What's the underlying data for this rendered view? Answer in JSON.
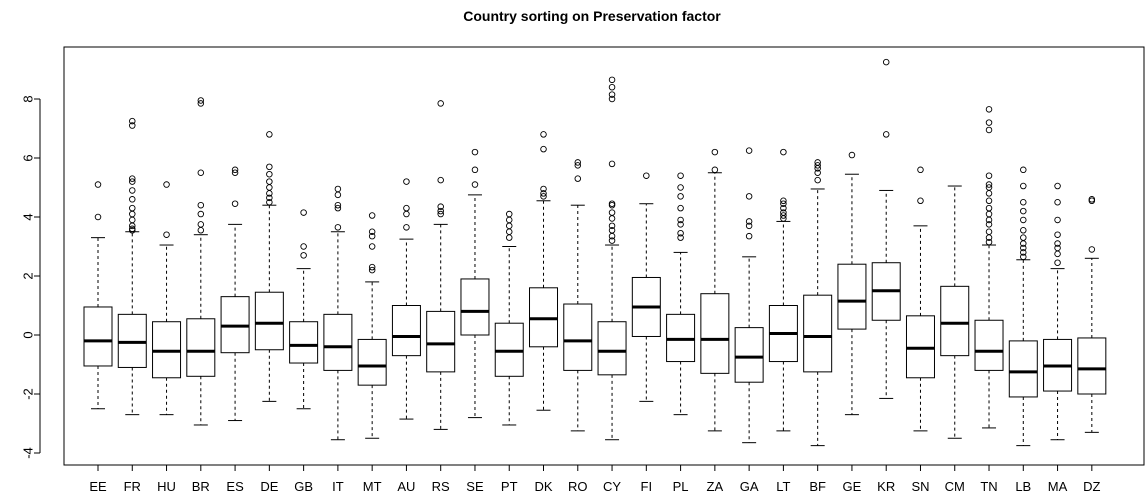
{
  "chart_data": {
    "type": "box",
    "title": "Country sorting on Preservation factor",
    "xlabel": "",
    "ylabel": "",
    "ylim": [
      -4.3,
      9.6
    ],
    "yticks": [
      -4,
      -2,
      0,
      2,
      4,
      6,
      8
    ],
    "ytick_labels": [
      "-4",
      "-2",
      "0",
      "2",
      "4",
      "6",
      "8"
    ],
    "grid": false,
    "categories": [
      "EE",
      "FR",
      "HU",
      "BR",
      "ES",
      "DE",
      "GB",
      "IT",
      "MT",
      "AU",
      "RS",
      "SE",
      "PT",
      "DK",
      "RO",
      "CY",
      "FI",
      "PL",
      "ZA",
      "GA",
      "LT",
      "BF",
      "GE",
      "KR",
      "SN",
      "CM",
      "TN",
      "LB",
      "MA",
      "DZ"
    ],
    "boxes": [
      {
        "whisker_low": -2.5,
        "q1": -1.05,
        "median": -0.2,
        "q3": 0.95,
        "whisker_high": 3.3,
        "outliers": [
          4.0,
          5.1
        ]
      },
      {
        "whisker_low": -2.7,
        "q1": -1.1,
        "median": -0.25,
        "q3": 0.7,
        "whisker_high": 3.5,
        "outliers": [
          3.55,
          3.6,
          3.7,
          3.9,
          4.1,
          4.3,
          4.6,
          4.9,
          5.2,
          5.3,
          7.1,
          7.25
        ]
      },
      {
        "whisker_low": -2.7,
        "q1": -1.45,
        "median": -0.55,
        "q3": 0.45,
        "whisker_high": 3.05,
        "outliers": [
          3.4,
          5.1
        ]
      },
      {
        "whisker_low": -3.05,
        "q1": -1.4,
        "median": -0.55,
        "q3": 0.55,
        "whisker_high": 3.4,
        "outliers": [
          3.55,
          3.75,
          4.1,
          4.4,
          5.5,
          7.85,
          7.95
        ]
      },
      {
        "whisker_low": -2.9,
        "q1": -0.6,
        "median": 0.3,
        "q3": 1.3,
        "whisker_high": 3.75,
        "outliers": [
          4.45,
          5.5,
          5.6
        ]
      },
      {
        "whisker_low": -2.25,
        "q1": -0.5,
        "median": 0.4,
        "q3": 1.45,
        "whisker_high": 4.4,
        "outliers": [
          4.5,
          4.65,
          4.8,
          5.0,
          5.2,
          5.45,
          5.7,
          6.8
        ]
      },
      {
        "whisker_low": -2.5,
        "q1": -0.95,
        "median": -0.35,
        "q3": 0.45,
        "whisker_high": 2.25,
        "outliers": [
          2.7,
          3.0,
          4.15
        ]
      },
      {
        "whisker_low": -3.55,
        "q1": -1.2,
        "median": -0.4,
        "q3": 0.7,
        "whisker_high": 3.5,
        "outliers": [
          3.65,
          4.3,
          4.4,
          4.75,
          4.95
        ]
      },
      {
        "whisker_low": -3.5,
        "q1": -1.7,
        "median": -1.05,
        "q3": -0.15,
        "whisker_high": 1.8,
        "outliers": [
          2.2,
          2.3,
          3.0,
          3.35,
          3.5,
          4.05
        ]
      },
      {
        "whisker_low": -2.85,
        "q1": -0.7,
        "median": -0.05,
        "q3": 1.0,
        "whisker_high": 3.25,
        "outliers": [
          3.65,
          4.1,
          4.3,
          5.2
        ]
      },
      {
        "whisker_low": -3.2,
        "q1": -1.25,
        "median": -0.3,
        "q3": 0.8,
        "whisker_high": 3.75,
        "outliers": [
          4.1,
          4.2,
          4.35,
          5.25,
          7.85
        ]
      },
      {
        "whisker_low": -2.8,
        "q1": 0.0,
        "median": 0.8,
        "q3": 1.9,
        "whisker_high": 4.75,
        "outliers": [
          5.1,
          5.6,
          6.2
        ]
      },
      {
        "whisker_low": -3.05,
        "q1": -1.4,
        "median": -0.55,
        "q3": 0.4,
        "whisker_high": 3.0,
        "outliers": [
          3.3,
          3.5,
          3.7,
          3.9,
          4.1
        ]
      },
      {
        "whisker_low": -2.55,
        "q1": -0.4,
        "median": 0.55,
        "q3": 1.6,
        "whisker_high": 4.55,
        "outliers": [
          4.7,
          4.8,
          4.95,
          6.3,
          6.8
        ]
      },
      {
        "whisker_low": -3.25,
        "q1": -1.2,
        "median": -0.2,
        "q3": 1.05,
        "whisker_high": 4.4,
        "outliers": [
          5.3,
          5.75,
          5.85
        ]
      },
      {
        "whisker_low": -3.55,
        "q1": -1.35,
        "median": -0.55,
        "q3": 0.45,
        "whisker_high": 3.05,
        "outliers": [
          3.2,
          3.35,
          3.55,
          3.7,
          3.95,
          4.15,
          4.4,
          4.45,
          5.8,
          8.0,
          8.15,
          8.4,
          8.65
        ]
      },
      {
        "whisker_low": -2.25,
        "q1": -0.05,
        "median": 0.95,
        "q3": 1.95,
        "whisker_high": 4.45,
        "outliers": [
          5.4
        ]
      },
      {
        "whisker_low": -2.7,
        "q1": -0.9,
        "median": -0.15,
        "q3": 0.7,
        "whisker_high": 2.8,
        "outliers": [
          3.3,
          3.45,
          3.75,
          3.9,
          4.3,
          4.7,
          5.0,
          5.4
        ]
      },
      {
        "whisker_low": -3.25,
        "q1": -1.3,
        "median": -0.15,
        "q3": 1.4,
        "whisker_high": 5.5,
        "outliers": [
          5.6,
          6.2
        ]
      },
      {
        "whisker_low": -3.65,
        "q1": -1.6,
        "median": -0.75,
        "q3": 0.25,
        "whisker_high": 2.65,
        "outliers": [
          3.35,
          3.7,
          3.85,
          4.7,
          6.25
        ]
      },
      {
        "whisker_low": -3.25,
        "q1": -0.9,
        "median": 0.05,
        "q3": 1.0,
        "whisker_high": 3.85,
        "outliers": [
          3.95,
          4.05,
          4.15,
          4.3,
          4.45,
          4.55,
          6.2
        ]
      },
      {
        "whisker_low": -3.75,
        "q1": -1.25,
        "median": -0.05,
        "q3": 1.35,
        "whisker_high": 4.95,
        "outliers": [
          5.25,
          5.5,
          5.65,
          5.75,
          5.85
        ]
      },
      {
        "whisker_low": -2.7,
        "q1": 0.2,
        "median": 1.15,
        "q3": 2.4,
        "whisker_high": 5.45,
        "outliers": [
          6.1
        ]
      },
      {
        "whisker_low": -2.15,
        "q1": 0.5,
        "median": 1.5,
        "q3": 2.45,
        "whisker_high": 4.9,
        "outliers": [
          6.8,
          9.25
        ]
      },
      {
        "whisker_low": -3.25,
        "q1": -1.45,
        "median": -0.45,
        "q3": 0.65,
        "whisker_high": 3.7,
        "outliers": [
          4.55,
          5.6
        ]
      },
      {
        "whisker_low": -3.5,
        "q1": -0.7,
        "median": 0.4,
        "q3": 1.65,
        "whisker_high": 5.05,
        "outliers": []
      },
      {
        "whisker_low": -3.15,
        "q1": -1.2,
        "median": -0.55,
        "q3": 0.5,
        "whisker_high": 3.05,
        "outliers": [
          3.15,
          3.3,
          3.5,
          3.75,
          3.9,
          4.1,
          4.3,
          4.55,
          4.8,
          5.0,
          5.1,
          5.4,
          6.95,
          7.2,
          7.65
        ]
      },
      {
        "whisker_low": -3.75,
        "q1": -2.1,
        "median": -1.25,
        "q3": -0.2,
        "whisker_high": 2.55,
        "outliers": [
          2.65,
          2.8,
          2.95,
          3.1,
          3.3,
          3.55,
          3.9,
          4.2,
          4.5,
          5.05,
          5.6
        ]
      },
      {
        "whisker_low": -3.55,
        "q1": -1.9,
        "median": -1.05,
        "q3": -0.15,
        "whisker_high": 2.25,
        "outliers": [
          2.45,
          2.75,
          2.95,
          3.1,
          3.4,
          3.9,
          4.5,
          5.05
        ]
      },
      {
        "whisker_low": -3.3,
        "q1": -2.0,
        "median": -1.15,
        "q3": -0.1,
        "whisker_high": 2.6,
        "outliers": [
          2.9,
          4.55,
          4.6
        ]
      }
    ]
  }
}
